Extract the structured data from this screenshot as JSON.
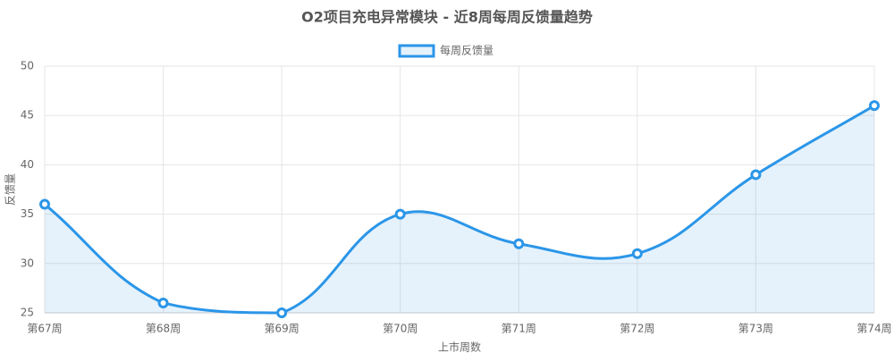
{
  "chart_data": {
    "type": "line",
    "title": "O2项目充电异常模块 - 近8周每周反馈量趋势",
    "x_label": "上市周数",
    "y_label": "反馈量",
    "categories": [
      "第67周",
      "第68周",
      "第69周",
      "第70周",
      "第71周",
      "第72周",
      "第73周",
      "第74周"
    ],
    "series": [
      {
        "name": "每周反馈量",
        "color": "#2b96e8",
        "fill": "rgba(43,150,232,0.12)",
        "values": [
          36,
          26,
          25,
          35,
          32,
          31,
          39,
          46
        ]
      }
    ],
    "ylim": [
      25,
      50
    ],
    "yticks": [
      25,
      30,
      35,
      40,
      45,
      50
    ],
    "grid": true,
    "legend": "top"
  }
}
